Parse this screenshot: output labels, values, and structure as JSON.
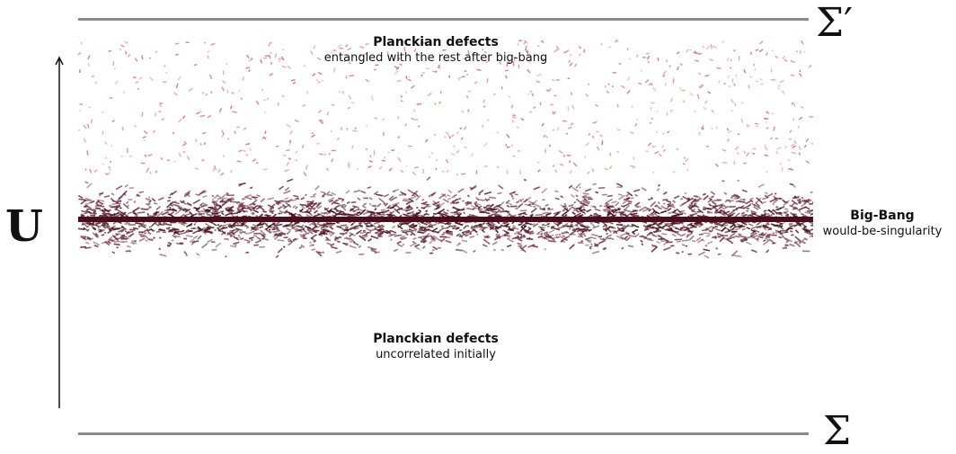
{
  "symbols": {
    "sigma_prime": "Σ′",
    "sigma": "Σ",
    "u": "U"
  },
  "top_label": {
    "title": "Planckian defects",
    "subtitle": "entangled with the rest after big-bang"
  },
  "bottom_label": {
    "title": "Planckian defects",
    "subtitle": "uncorrelated initially"
  },
  "big_bang": {
    "title": "Big-Bang",
    "subtitle": "would-be-singularity"
  },
  "colors": {
    "boundary_line": "#8a8a8a",
    "band_core": "#4a0f1e",
    "band_defects": "#6b2b3e",
    "sparse_defects": "#d0566e"
  }
}
